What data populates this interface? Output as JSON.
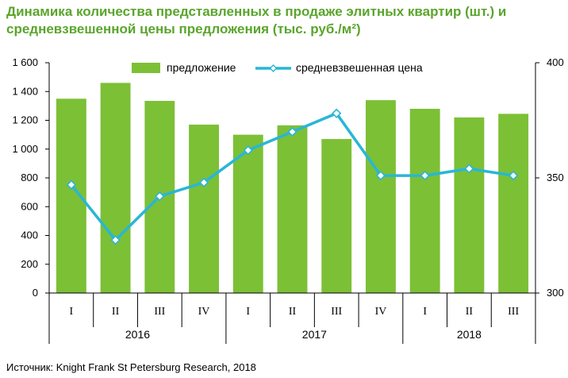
{
  "title_line1": "Динамика количества представленных в продаже элитных квартир (шт.) и",
  "title_line2": "средневзвешенной цены предложения (тыс. руб./м²)",
  "source": "Источник: Knight Frank St Petersburg Research, 2018",
  "colors": {
    "bar": "#7cc036",
    "line": "#29b6d6",
    "marker_fill": "#ffffff",
    "title": "#5aa52c"
  },
  "chart_data": {
    "type": "bar",
    "categories": [
      "I",
      "II",
      "III",
      "IV",
      "I",
      "II",
      "III",
      "IV",
      "I",
      "II",
      "III"
    ],
    "years": [
      {
        "label": "2016",
        "count": 4
      },
      {
        "label": "2017",
        "count": 4
      },
      {
        "label": "2018",
        "count": 3
      }
    ],
    "series": [
      {
        "name": "предложение",
        "type": "bar",
        "axis": "left",
        "values": [
          1350,
          1460,
          1335,
          1170,
          1100,
          1165,
          1070,
          1340,
          1280,
          1220,
          1245
        ]
      },
      {
        "name": "средневзвешенная цена",
        "type": "line",
        "axis": "right",
        "values": [
          347,
          323,
          342,
          348,
          362,
          370,
          378,
          351,
          351,
          354,
          351
        ]
      }
    ],
    "y_left": {
      "min": 0,
      "max": 1600,
      "step": 200,
      "ticks": [
        "0",
        "200",
        "400",
        "600",
        "800",
        "1 000",
        "1 200",
        "1 400",
        "1 600"
      ]
    },
    "y_right": {
      "min": 300,
      "max": 400,
      "ticks": [
        "300",
        "350",
        "400"
      ]
    },
    "legend_position": "top",
    "grid": false
  }
}
